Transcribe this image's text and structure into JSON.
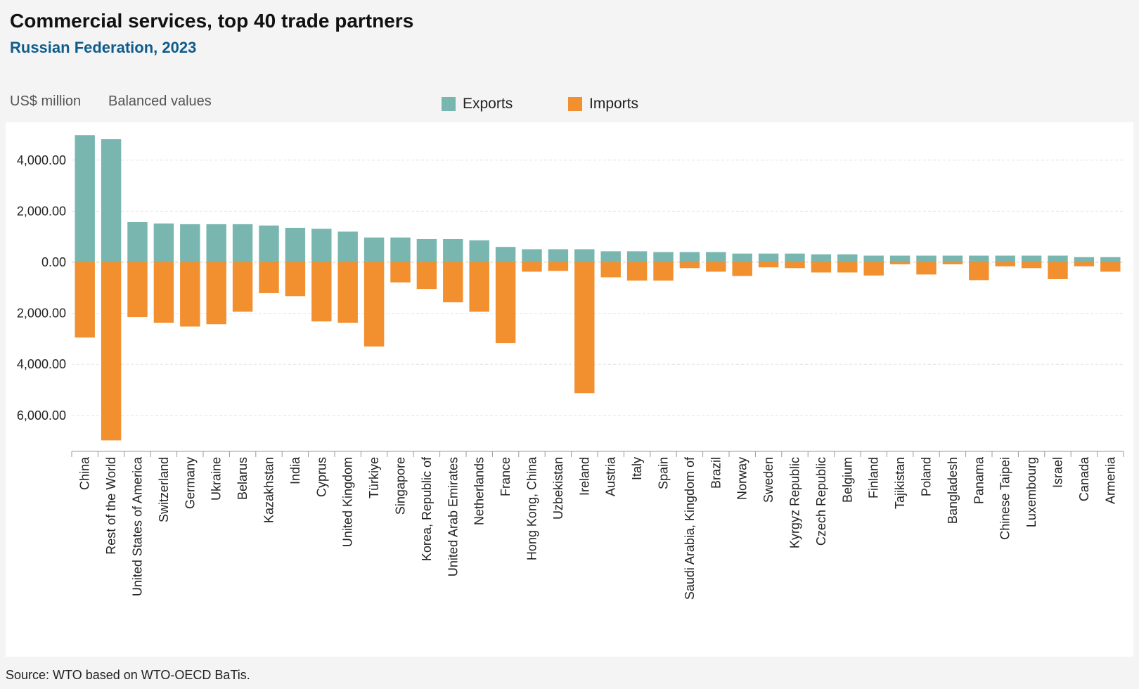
{
  "header": {
    "title": "Commercial services, top 40 trade partners",
    "subtitle": "Russian Federation, 2023",
    "unit": "US$ million",
    "mode": "Balanced values"
  },
  "source": "Source: WTO based on WTO-OECD BaTis.",
  "colors": {
    "exports": "#79b6b0",
    "imports": "#f28f2e"
  },
  "chart_data": {
    "type": "bar",
    "title": "Commercial services, top 40 trade partners",
    "subtitle": "Russian Federation, 2023",
    "ylabel": "US$ million",
    "ylim": [
      -7000,
      5000
    ],
    "yticks": [
      4000,
      2000,
      0,
      -2000,
      -4000,
      -6000
    ],
    "ytick_labels": [
      "4,000.00",
      "2,000.00",
      "0.00",
      "2,000.00",
      "4,000.00",
      "6,000.00"
    ],
    "grid": true,
    "legend": {
      "placement": "top-center",
      "entries": [
        "Exports",
        "Imports"
      ]
    },
    "categories": [
      "China",
      "Rest of the World",
      "United States of America",
      "Switzerland",
      "Germany",
      "Ukraine",
      "Belarus",
      "Kazakhstan",
      "India",
      "Cyprus",
      "United Kingdom",
      "Türkiye",
      "Singapore",
      "Korea, Republic of",
      "United Arab Emirates",
      "Netherlands",
      "France",
      "Hong Kong, China",
      "Uzbekistan",
      "Ireland",
      "Austria",
      "Italy",
      "Spain",
      "Saudi Arabia, Kingdom of",
      "Brazil",
      "Norway",
      "Sweden",
      "Kyrgyz Republic",
      "Czech Republic",
      "Belgium",
      "Finland",
      "Tajikistan",
      "Poland",
      "Bangladesh",
      "Panama",
      "Chinese Taipei",
      "Luxembourg",
      "Israel",
      "Canada",
      "Armenia"
    ],
    "series": [
      {
        "name": "Exports",
        "values": [
          4980,
          4820,
          1570,
          1520,
          1490,
          1490,
          1490,
          1440,
          1350,
          1310,
          1200,
          970,
          970,
          910,
          910,
          860,
          600,
          510,
          510,
          510,
          430,
          430,
          400,
          400,
          400,
          340,
          340,
          340,
          310,
          310,
          260,
          260,
          260,
          260,
          260,
          260,
          260,
          260,
          200,
          200
        ]
      },
      {
        "name": "Imports",
        "values": [
          -2950,
          -6980,
          -2150,
          -2370,
          -2520,
          -2430,
          -1940,
          -1210,
          -1330,
          -2320,
          -2370,
          -3300,
          -790,
          -1050,
          -1570,
          -1940,
          -3170,
          -370,
          -340,
          -5130,
          -590,
          -720,
          -720,
          -230,
          -370,
          -540,
          -200,
          -230,
          -400,
          -400,
          -520,
          -80,
          -480,
          -80,
          -700,
          -160,
          -230,
          -660,
          -160,
          -370
        ]
      }
    ]
  }
}
